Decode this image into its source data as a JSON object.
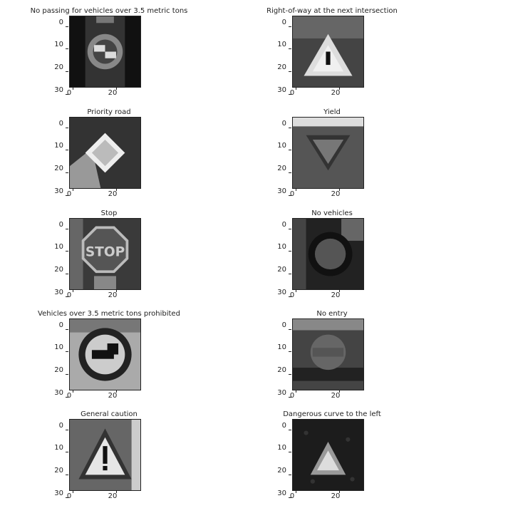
{
  "figure": {
    "panels": [
      {
        "title": "No passing for vehicles over 3.5 metric tons",
        "sign": "no-passing-trucks-sign"
      },
      {
        "title": "Right-of-way at the next intersection",
        "sign": "right-of-way-sign"
      },
      {
        "title": "Priority road",
        "sign": "priority-road-sign"
      },
      {
        "title": "Yield",
        "sign": "yield-sign"
      },
      {
        "title": "Stop",
        "sign": "stop-sign"
      },
      {
        "title": "No vehicles",
        "sign": "no-vehicles-sign"
      },
      {
        "title": "Vehicles over 3.5 metric tons prohibited",
        "sign": "trucks-prohibited-sign"
      },
      {
        "title": "No entry",
        "sign": "no-entry-sign"
      },
      {
        "title": "General caution",
        "sign": "general-caution-sign"
      },
      {
        "title": "Dangerous curve to the left",
        "sign": "dangerous-curve-left-sign"
      }
    ],
    "axis": {
      "y_ticks": [
        "0",
        "10",
        "20",
        "30"
      ],
      "x_ticks": [
        "0",
        "20"
      ]
    },
    "stop_text": "STOP"
  }
}
